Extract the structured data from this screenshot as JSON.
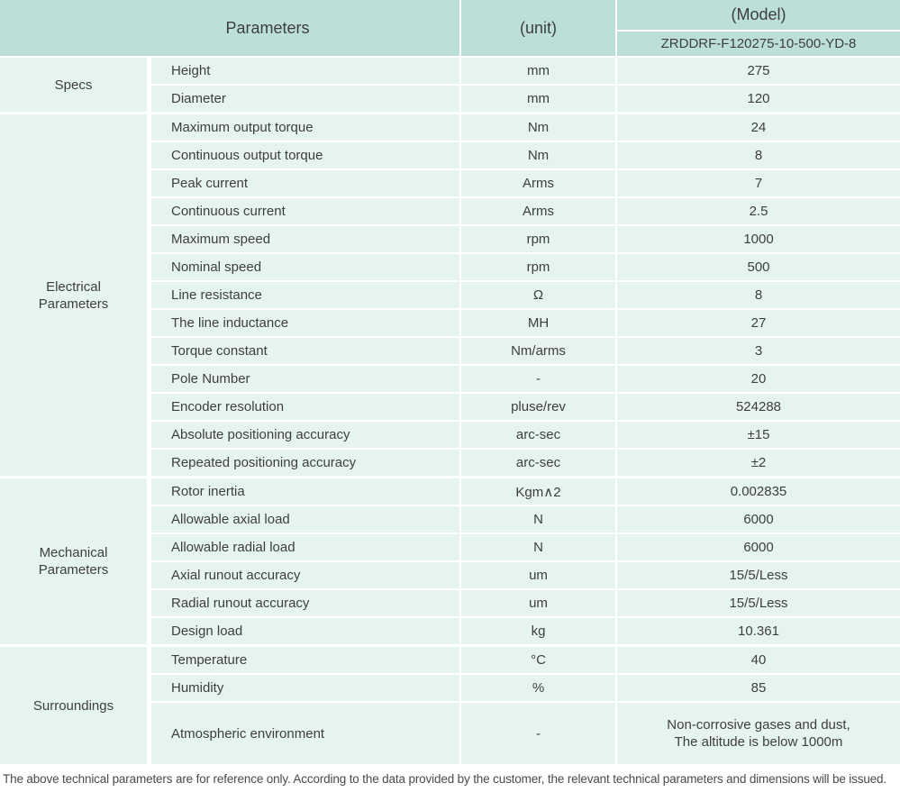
{
  "colors": {
    "header_bg": "#bce0d8",
    "cell_bg": "#e6f4f1",
    "text": "#3e3e3e"
  },
  "table": {
    "header": {
      "parameters_label": "Parameters",
      "unit_label": "(unit)",
      "model_label": "(Model)",
      "model_value": "ZRDDRF-F120275-10-500-YD-8"
    },
    "sections": [
      {
        "group": "Specs",
        "rows": [
          {
            "param": "Height",
            "unit": "mm",
            "value": "275"
          },
          {
            "param": "Diameter",
            "unit": "mm",
            "value": "120"
          }
        ]
      },
      {
        "group": "Electrical\nParameters",
        "rows": [
          {
            "param": "Maximum output torque",
            "unit": "Nm",
            "value": "24"
          },
          {
            "param": "Continuous output torque",
            "unit": "Nm",
            "value": "8"
          },
          {
            "param": "Peak current",
            "unit": "Arms",
            "value": "7"
          },
          {
            "param": "Continuous current",
            "unit": "Arms",
            "value": "2.5"
          },
          {
            "param": "Maximum speed",
            "unit": "rpm",
            "value": "1000"
          },
          {
            "param": "Nominal speed",
            "unit": "rpm",
            "value": "500"
          },
          {
            "param": "Line resistance",
            "unit": "Ω",
            "value": "8"
          },
          {
            "param": "The line inductance",
            "unit": "MH",
            "value": "27"
          },
          {
            "param": "Torque constant",
            "unit": "Nm/arms",
            "value": "3"
          },
          {
            "param": "Pole Number",
            "unit": "-",
            "value": "20"
          },
          {
            "param": "Encoder resolution",
            "unit": "pluse/rev",
            "value": "524288"
          },
          {
            "param": "Absolute positioning accuracy",
            "unit": "arc-sec",
            "value": "±15"
          },
          {
            "param": "Repeated positioning accuracy",
            "unit": "arc-sec",
            "value": "±2"
          }
        ]
      },
      {
        "group": "Mechanical\nParameters",
        "rows": [
          {
            "param": "Rotor inertia",
            "unit": "Kgm∧2",
            "value": "0.002835"
          },
          {
            "param": "Allowable axial load",
            "unit": "N",
            "value": "6000"
          },
          {
            "param": "Allowable radial load",
            "unit": "N",
            "value": "6000"
          },
          {
            "param": "Axial runout accuracy",
            "unit": "um",
            "value": "15/5/Less"
          },
          {
            "param": "Radial runout accuracy",
            "unit": "um",
            "value": "15/5/Less"
          },
          {
            "param": "Design load",
            "unit": "kg",
            "value": "10.361"
          }
        ]
      },
      {
        "group": "Surroundings",
        "rows": [
          {
            "param": "Temperature",
            "unit": "°C",
            "value": "40"
          },
          {
            "param": "Humidity",
            "unit": "%",
            "value": "85"
          },
          {
            "param": "Atmospheric environment",
            "unit": "-",
            "value": "Non-corrosive gases and dust,\nThe altitude is below 1000m"
          }
        ]
      }
    ]
  },
  "footer": {
    "note": "The above technical parameters are for reference only. According to the data provided by the customer, the relevant technical parameters and dimensions will be issued."
  }
}
